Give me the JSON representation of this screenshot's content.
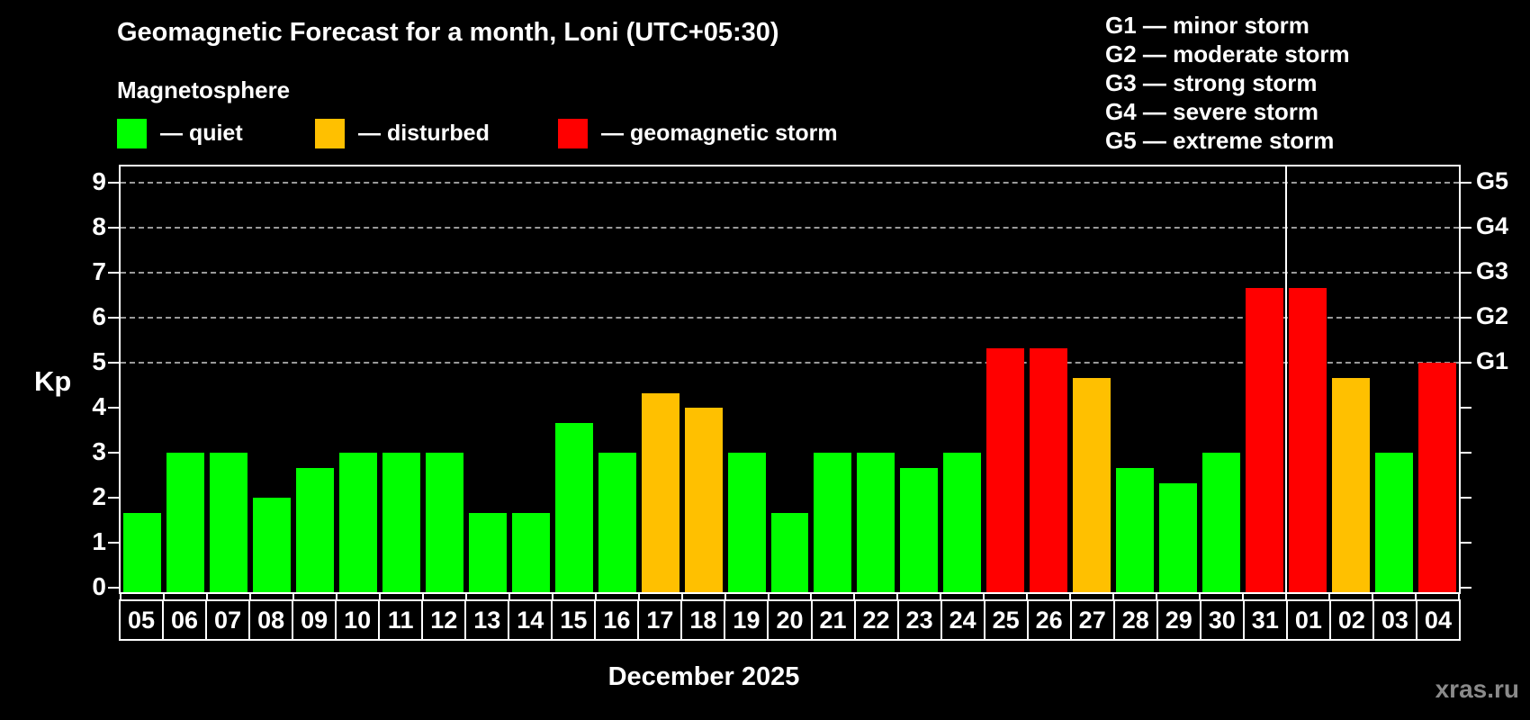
{
  "header": {
    "title": "Geomagnetic Forecast for a month, Loni (UTC+05:30)",
    "subtitle": "Magnetosphere"
  },
  "legend": {
    "items": [
      {
        "name": "quiet",
        "label": "— quiet",
        "color": "#00ff00"
      },
      {
        "name": "disturbed",
        "label": "— disturbed",
        "color": "#ffc000"
      },
      {
        "name": "storm",
        "label": "— geomagnetic storm",
        "color": "#ff0000"
      }
    ]
  },
  "storm_scale_legend": {
    "lines": [
      "G1 — minor storm",
      "G2 — moderate storm",
      "G3 — strong storm",
      "G4 — severe storm",
      "G5 — extreme storm"
    ]
  },
  "chart_data": {
    "type": "bar",
    "title": "Geomagnetic Forecast for a month, Loni (UTC+05:30)",
    "xlabel": "December 2025",
    "ylabel": "Kp",
    "ylim": [
      0,
      9.4
    ],
    "y_ticks": [
      0,
      1,
      2,
      3,
      4,
      5,
      6,
      7,
      8,
      9
    ],
    "dashed_gridlines_at": [
      5,
      6,
      7,
      8,
      9
    ],
    "grid": "dashed horizontal lines at Kp 5-9 only",
    "legend_position": "top-left",
    "categories": [
      "05",
      "06",
      "07",
      "08",
      "09",
      "10",
      "11",
      "12",
      "13",
      "14",
      "15",
      "16",
      "17",
      "18",
      "19",
      "20",
      "21",
      "22",
      "23",
      "24",
      "25",
      "26",
      "27",
      "28",
      "29",
      "30",
      "31",
      "01",
      "02",
      "03",
      "04"
    ],
    "values": [
      1.67,
      3,
      3,
      2,
      2.67,
      3,
      3,
      3,
      1.67,
      1.67,
      3.67,
      3,
      4.33,
      4,
      3,
      1.67,
      3,
      3,
      2.67,
      3,
      5.33,
      5.33,
      4.67,
      2.67,
      2.33,
      3,
      6.67,
      6.67,
      4.67,
      3,
      5
    ],
    "statuses": [
      "quiet",
      "quiet",
      "quiet",
      "quiet",
      "quiet",
      "quiet",
      "quiet",
      "quiet",
      "quiet",
      "quiet",
      "quiet",
      "quiet",
      "disturbed",
      "disturbed",
      "quiet",
      "quiet",
      "quiet",
      "quiet",
      "quiet",
      "quiet",
      "storm",
      "storm",
      "disturbed",
      "quiet",
      "quiet",
      "quiet",
      "storm",
      "storm",
      "disturbed",
      "quiet",
      "storm"
    ],
    "status_colors": {
      "quiet": "#00ff00",
      "disturbed": "#ffc000",
      "storm": "#ff0000"
    },
    "right_axis_labels": [
      {
        "text": "G1",
        "kp": 5
      },
      {
        "text": "G2",
        "kp": 6
      },
      {
        "text": "G3",
        "kp": 7
      },
      {
        "text": "G4",
        "kp": 8
      },
      {
        "text": "G5",
        "kp": 9
      }
    ],
    "month_separator_after_index": 26
  },
  "footer": {
    "xlabel": "December 2025",
    "watermark": "xras.ru"
  }
}
